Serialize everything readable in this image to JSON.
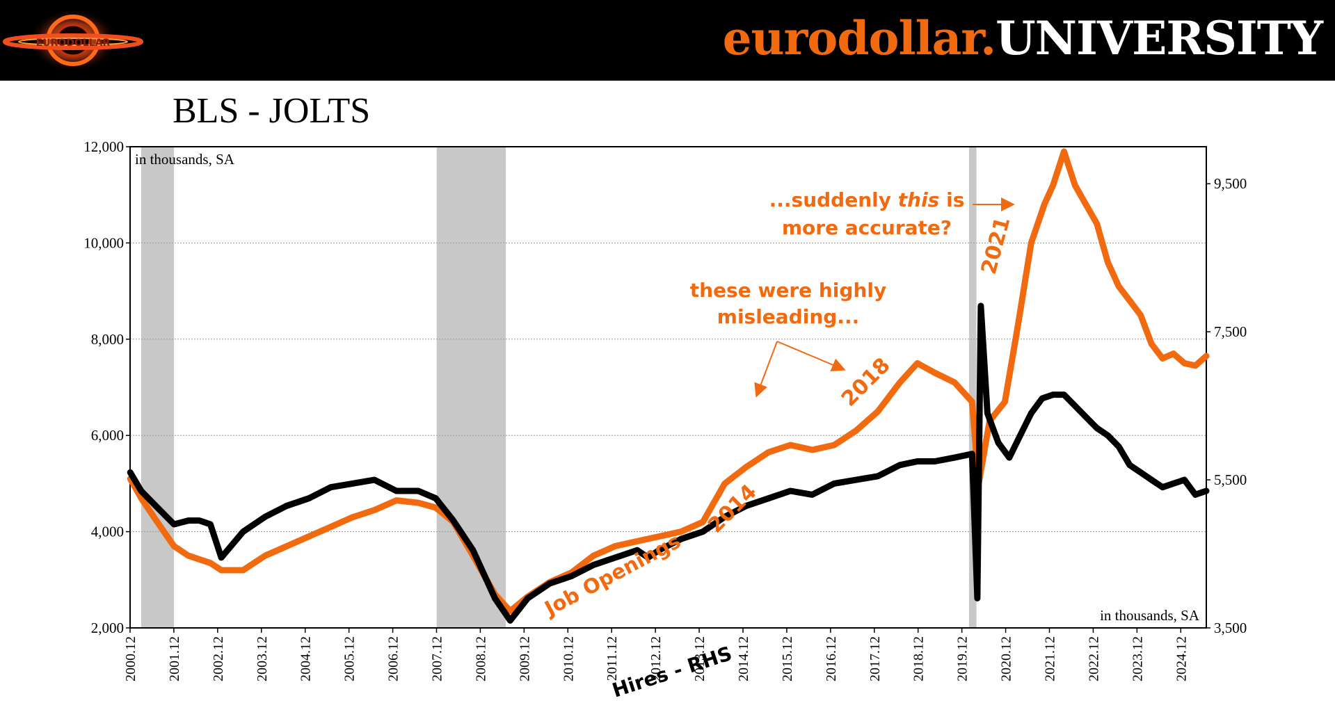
{
  "header": {
    "brand_orange": "eurodollar.",
    "brand_white": "UNIVERSITY",
    "logo_text": "EURODOLLAR"
  },
  "colors": {
    "orange": "#F26A10",
    "black": "#000000",
    "recession": "#C8C8C8",
    "grid": "#9A9A9A"
  },
  "chart_data": {
    "type": "line",
    "title": "BLS - JOLTS",
    "left_axis_label": "in thousands, SA",
    "right_axis_label": "in thousands, SA",
    "ylim_left": [
      2000,
      12000
    ],
    "ylim_right": [
      3500,
      10000
    ],
    "yticks_left": [
      "2,000",
      "4,000",
      "6,000",
      "8,000",
      "10,000",
      "12,000"
    ],
    "yticks_right": [
      "3,500",
      "5,500",
      "7,500",
      "9,500"
    ],
    "yticks_left_values": [
      2000,
      4000,
      6000,
      8000,
      10000,
      12000
    ],
    "yticks_right_values": [
      3500,
      5500,
      7500,
      9500
    ],
    "xlim": [
      2000.917,
      2025.5
    ],
    "xticks": [
      "2000.12",
      "2001.12",
      "2002.12",
      "2003.12",
      "2004.12",
      "2005.12",
      "2006.12",
      "2007.12",
      "2008.12",
      "2009.12",
      "2010.12",
      "2011.12",
      "2012.12",
      "2013.12",
      "2014.12",
      "2015.12",
      "2016.12",
      "2017.12",
      "2018.12",
      "2019.12",
      "2020.12",
      "2021.12",
      "2022.12",
      "2023.12",
      "2024.12"
    ],
    "recessions": [
      [
        2001.17,
        2001.92
      ],
      [
        2007.92,
        2009.5
      ],
      [
        2020.08,
        2020.25
      ]
    ],
    "series": [
      {
        "name": "Job Openings",
        "axis": "left",
        "color": "#F26A10",
        "points": [
          [
            2000.92,
            5100
          ],
          [
            2001.17,
            4700
          ],
          [
            2001.5,
            4250
          ],
          [
            2001.92,
            3700
          ],
          [
            2002.25,
            3500
          ],
          [
            2002.75,
            3350
          ],
          [
            2003.0,
            3200
          ],
          [
            2003.5,
            3200
          ],
          [
            2004.0,
            3500
          ],
          [
            2004.5,
            3700
          ],
          [
            2005.0,
            3900
          ],
          [
            2005.5,
            4100
          ],
          [
            2006.0,
            4300
          ],
          [
            2006.5,
            4450
          ],
          [
            2007.0,
            4650
          ],
          [
            2007.5,
            4600
          ],
          [
            2007.9,
            4500
          ],
          [
            2008.3,
            4200
          ],
          [
            2008.75,
            3500
          ],
          [
            2009.25,
            2700
          ],
          [
            2009.6,
            2350
          ],
          [
            2010.0,
            2650
          ],
          [
            2010.5,
            2950
          ],
          [
            2011.0,
            3150
          ],
          [
            2011.5,
            3500
          ],
          [
            2012.0,
            3700
          ],
          [
            2012.5,
            3800
          ],
          [
            2013.0,
            3900
          ],
          [
            2013.5,
            4000
          ],
          [
            2014.0,
            4200
          ],
          [
            2014.5,
            5000
          ],
          [
            2015.0,
            5350
          ],
          [
            2015.5,
            5650
          ],
          [
            2016.0,
            5800
          ],
          [
            2016.5,
            5700
          ],
          [
            2017.0,
            5800
          ],
          [
            2017.5,
            6100
          ],
          [
            2018.0,
            6500
          ],
          [
            2018.5,
            7100
          ],
          [
            2018.9,
            7500
          ],
          [
            2019.3,
            7300
          ],
          [
            2019.75,
            7100
          ],
          [
            2020.15,
            6700
          ],
          [
            2020.3,
            5000
          ],
          [
            2020.55,
            6300
          ],
          [
            2020.9,
            6700
          ],
          [
            2021.2,
            8300
          ],
          [
            2021.5,
            10000
          ],
          [
            2021.8,
            10800
          ],
          [
            2022.0,
            11200
          ],
          [
            2022.25,
            11900
          ],
          [
            2022.5,
            11200
          ],
          [
            2022.75,
            10800
          ],
          [
            2023.0,
            10400
          ],
          [
            2023.25,
            9600
          ],
          [
            2023.5,
            9100
          ],
          [
            2023.75,
            8800
          ],
          [
            2024.0,
            8500
          ],
          [
            2024.25,
            7900
          ],
          [
            2024.5,
            7600
          ],
          [
            2024.75,
            7700
          ],
          [
            2025.0,
            7500
          ],
          [
            2025.25,
            7450
          ],
          [
            2025.5,
            7650
          ]
        ]
      },
      {
        "name": "Hires - RHS",
        "axis": "right",
        "color": "#000000",
        "points": [
          [
            2000.92,
            5600
          ],
          [
            2001.17,
            5350
          ],
          [
            2001.5,
            5150
          ],
          [
            2001.92,
            4900
          ],
          [
            2002.25,
            4950
          ],
          [
            2002.5,
            4950
          ],
          [
            2002.75,
            4900
          ],
          [
            2003.0,
            4450
          ],
          [
            2003.5,
            4800
          ],
          [
            2004.0,
            5000
          ],
          [
            2004.5,
            5150
          ],
          [
            2005.0,
            5250
          ],
          [
            2005.5,
            5400
          ],
          [
            2006.0,
            5450
          ],
          [
            2006.5,
            5500
          ],
          [
            2007.0,
            5350
          ],
          [
            2007.5,
            5350
          ],
          [
            2007.9,
            5250
          ],
          [
            2008.3,
            4950
          ],
          [
            2008.75,
            4550
          ],
          [
            2009.25,
            3900
          ],
          [
            2009.6,
            3600
          ],
          [
            2010.0,
            3900
          ],
          [
            2010.5,
            4100
          ],
          [
            2011.0,
            4200
          ],
          [
            2011.5,
            4350
          ],
          [
            2012.0,
            4450
          ],
          [
            2012.5,
            4550
          ],
          [
            2012.75,
            4450
          ],
          [
            2013.0,
            4550
          ],
          [
            2013.5,
            4700
          ],
          [
            2014.0,
            4800
          ],
          [
            2014.5,
            5000
          ],
          [
            2015.0,
            5150
          ],
          [
            2015.5,
            5250
          ],
          [
            2016.0,
            5350
          ],
          [
            2016.5,
            5300
          ],
          [
            2017.0,
            5450
          ],
          [
            2017.5,
            5500
          ],
          [
            2018.0,
            5550
          ],
          [
            2018.5,
            5700
          ],
          [
            2018.9,
            5750
          ],
          [
            2019.3,
            5750
          ],
          [
            2019.75,
            5800
          ],
          [
            2020.15,
            5850
          ],
          [
            2020.27,
            3900
          ],
          [
            2020.35,
            7850
          ],
          [
            2020.5,
            6400
          ],
          [
            2020.75,
            6000
          ],
          [
            2021.0,
            5800
          ],
          [
            2021.25,
            6100
          ],
          [
            2021.5,
            6400
          ],
          [
            2021.75,
            6600
          ],
          [
            2022.0,
            6650
          ],
          [
            2022.25,
            6650
          ],
          [
            2022.5,
            6500
          ],
          [
            2022.75,
            6350
          ],
          [
            2023.0,
            6200
          ],
          [
            2023.25,
            6100
          ],
          [
            2023.5,
            5950
          ],
          [
            2023.75,
            5700
          ],
          [
            2024.0,
            5600
          ],
          [
            2024.25,
            5500
          ],
          [
            2024.5,
            5400
          ],
          [
            2024.75,
            5450
          ],
          [
            2025.0,
            5500
          ],
          [
            2025.25,
            5300
          ],
          [
            2025.5,
            5350
          ]
        ]
      }
    ],
    "annotations": {
      "job_openings": "Job Openings",
      "hires": "Hires - RHS",
      "misleading_line1": "these were highly",
      "misleading_line2": "misleading...",
      "suddenly_pre": "...suddenly ",
      "suddenly_em": "this",
      "suddenly_post": " is",
      "accurate": "more accurate?",
      "y2014": "2014",
      "y2018": "2018",
      "y2021": "2021"
    }
  }
}
